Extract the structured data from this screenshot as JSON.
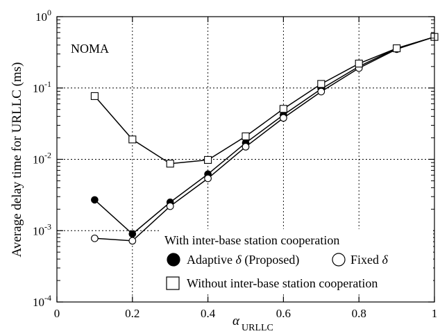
{
  "chart_data": {
    "type": "line",
    "title": "",
    "xlabel": "α",
    "xlabel_subscript": "URLLC",
    "ylabel": "Average delay time for URLLC (ms)",
    "xlim": [
      0,
      1
    ],
    "ylim": [
      0.0001,
      1
    ],
    "yscale": "log",
    "grid": true,
    "x_ticks": [
      "0",
      "0.2",
      "0.4",
      "0.6",
      "0.8",
      "1"
    ],
    "y_ticks": [
      {
        "base": "10",
        "exp": "0"
      },
      {
        "base": "10",
        "exp": "-1"
      },
      {
        "base": "10",
        "exp": "-2"
      },
      {
        "base": "10",
        "exp": "-3"
      },
      {
        "base": "10",
        "exp": "-4"
      }
    ],
    "annotation": "NOMA",
    "legend": {
      "placement": "bottom-right",
      "group_title": "With inter-base station cooperation",
      "adaptive_label": "Adaptive ",
      "adaptive_symbol": "δ",
      "adaptive_suffix": " (Proposed)",
      "fixed_label": "Fixed ",
      "fixed_symbol": "δ",
      "without_label": "Without inter-base station cooperation"
    },
    "series": [
      {
        "key": "adaptive",
        "marker": "filled-circle",
        "x": [
          0.1,
          0.2,
          0.3,
          0.4,
          0.5,
          0.6,
          0.7,
          0.8,
          0.9,
          1.0
        ],
        "y": [
          0.0027,
          0.0009,
          0.0025,
          0.0062,
          0.017,
          0.042,
          0.097,
          0.2,
          0.36,
          0.52
        ]
      },
      {
        "key": "fixed",
        "marker": "open-circle",
        "x": [
          0.1,
          0.2,
          0.3,
          0.4,
          0.5,
          0.6,
          0.7,
          0.8,
          0.9,
          1.0
        ],
        "y": [
          0.00078,
          0.00072,
          0.0022,
          0.0054,
          0.015,
          0.038,
          0.089,
          0.19,
          0.35,
          0.52
        ]
      },
      {
        "key": "without",
        "marker": "open-square",
        "x": [
          0.1,
          0.2,
          0.3,
          0.4,
          0.5,
          0.6,
          0.7,
          0.8,
          0.9,
          1.0
        ],
        "y": [
          0.077,
          0.019,
          0.0087,
          0.0098,
          0.021,
          0.051,
          0.114,
          0.22,
          0.36,
          0.52
        ]
      }
    ],
    "colors": {
      "line": "#000000",
      "grid": "#000000",
      "background": "#ffffff"
    }
  }
}
